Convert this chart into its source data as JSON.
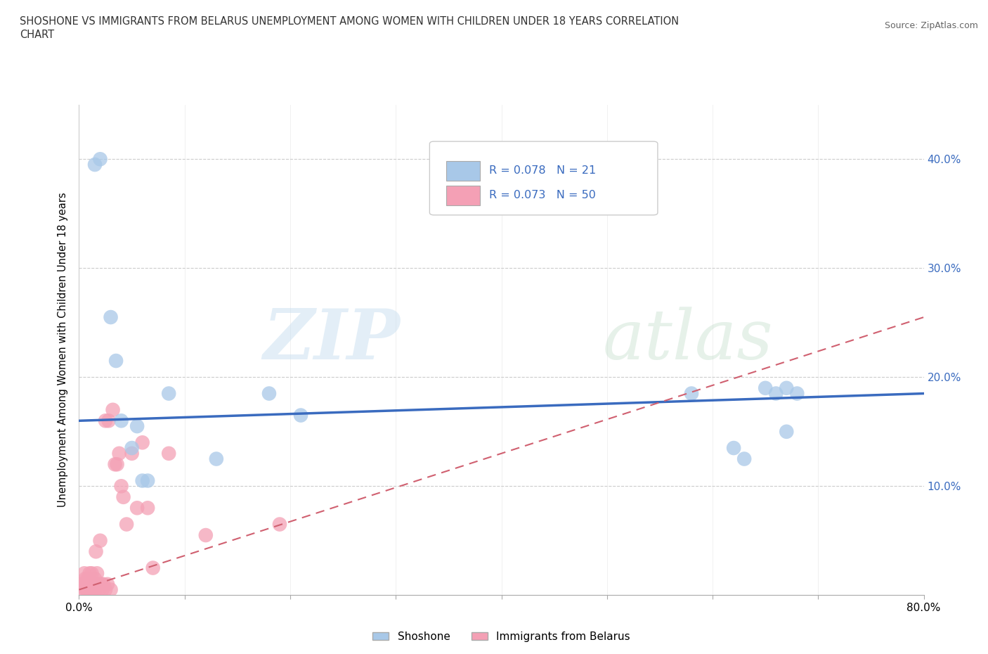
{
  "title_line1": "SHOSHONE VS IMMIGRANTS FROM BELARUS UNEMPLOYMENT AMONG WOMEN WITH CHILDREN UNDER 18 YEARS CORRELATION",
  "title_line2": "CHART",
  "source": "Source: ZipAtlas.com",
  "ylabel": "Unemployment Among Women with Children Under 18 years",
  "xlim": [
    0.0,
    0.8
  ],
  "ylim": [
    0.0,
    0.45
  ],
  "xticks": [
    0.0,
    0.1,
    0.2,
    0.3,
    0.4,
    0.5,
    0.6,
    0.7,
    0.8
  ],
  "xticklabels": [
    "0.0%",
    "",
    "",
    "",
    "",
    "",
    "",
    "",
    "80.0%"
  ],
  "yticks": [
    0.0,
    0.1,
    0.2,
    0.3,
    0.4
  ],
  "yticklabels_right": [
    "",
    "10.0%",
    "20.0%",
    "30.0%",
    "40.0%"
  ],
  "shoshone_color": "#a8c8e8",
  "belarus_color": "#f4a0b5",
  "shoshone_R": 0.078,
  "shoshone_N": 21,
  "belarus_R": 0.073,
  "belarus_N": 50,
  "shoshone_line_color": "#3a6bbf",
  "belarus_line_color": "#d06070",
  "shoshone_line_start_y": 0.16,
  "shoshone_line_end_y": 0.185,
  "belarus_line_start_y": 0.005,
  "belarus_line_end_y": 0.255,
  "grid_color": "#cccccc",
  "shoshone_points_x": [
    0.015,
    0.02,
    0.03,
    0.035,
    0.04,
    0.05,
    0.055,
    0.06,
    0.065,
    0.085,
    0.13,
    0.18,
    0.21,
    0.58,
    0.62,
    0.63,
    0.65,
    0.66,
    0.67,
    0.67,
    0.68
  ],
  "shoshone_points_y": [
    0.395,
    0.4,
    0.255,
    0.215,
    0.16,
    0.135,
    0.155,
    0.105,
    0.105,
    0.185,
    0.125,
    0.185,
    0.165,
    0.185,
    0.135,
    0.125,
    0.19,
    0.185,
    0.19,
    0.15,
    0.185
  ],
  "belarus_points_x": [
    0.003,
    0.004,
    0.005,
    0.005,
    0.006,
    0.006,
    0.007,
    0.007,
    0.008,
    0.008,
    0.009,
    0.009,
    0.01,
    0.01,
    0.011,
    0.011,
    0.012,
    0.012,
    0.013,
    0.014,
    0.015,
    0.015,
    0.016,
    0.017,
    0.018,
    0.019,
    0.02,
    0.021,
    0.022,
    0.023,
    0.025,
    0.025,
    0.027,
    0.028,
    0.03,
    0.032,
    0.034,
    0.036,
    0.038,
    0.04,
    0.042,
    0.045,
    0.05,
    0.055,
    0.06,
    0.065,
    0.07,
    0.085,
    0.12,
    0.19
  ],
  "belarus_points_y": [
    0.01,
    0.005,
    0.02,
    0.01,
    0.005,
    0.015,
    0.01,
    0.005,
    0.015,
    0.005,
    0.01,
    0.005,
    0.02,
    0.005,
    0.01,
    0.005,
    0.02,
    0.005,
    0.005,
    0.01,
    0.015,
    0.005,
    0.04,
    0.02,
    0.01,
    0.005,
    0.05,
    0.01,
    0.005,
    0.01,
    0.005,
    0.16,
    0.01,
    0.16,
    0.005,
    0.17,
    0.12,
    0.12,
    0.13,
    0.1,
    0.09,
    0.065,
    0.13,
    0.08,
    0.14,
    0.08,
    0.025,
    0.13,
    0.055,
    0.065
  ]
}
